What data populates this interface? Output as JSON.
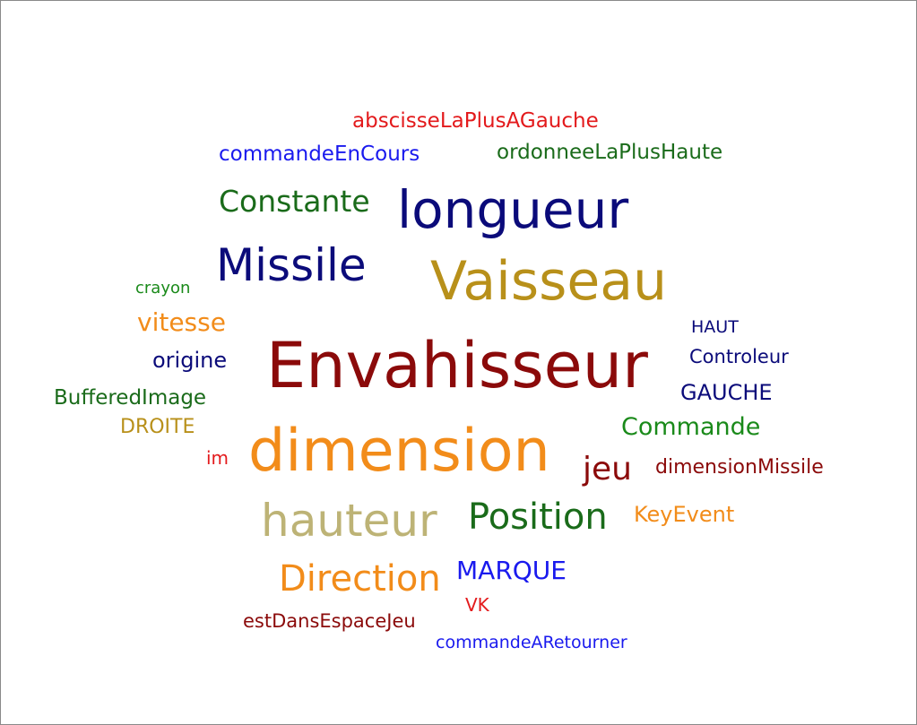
{
  "words": [
    {
      "id": "w-abscisse",
      "text": "abscisseLaPlusAGauche",
      "color": "#e31a1c"
    },
    {
      "id": "w-cmdcours",
      "text": "commandeEnCours",
      "color": "#1a1aee"
    },
    {
      "id": "w-ordonnee",
      "text": "ordonneeLaPlusHaute",
      "color": "#1a6b1a"
    },
    {
      "id": "w-constante",
      "text": "Constante",
      "color": "#1a6b1a"
    },
    {
      "id": "w-longueur",
      "text": "longueur",
      "color": "#0b0b7a"
    },
    {
      "id": "w-missile",
      "text": "Missile",
      "color": "#0b0b7a"
    },
    {
      "id": "w-vaisseau",
      "text": "Vaisseau",
      "color": "#b8901a"
    },
    {
      "id": "w-crayon",
      "text": "crayon",
      "color": "#1a8a1a"
    },
    {
      "id": "w-vitesse",
      "text": "vitesse",
      "color": "#f28c1a"
    },
    {
      "id": "w-haut",
      "text": "HAUT",
      "color": "#0b0b7a"
    },
    {
      "id": "w-envah",
      "text": "Envahisseur",
      "color": "#8b0a0a"
    },
    {
      "id": "w-origine",
      "text": "origine",
      "color": "#0b0b7a"
    },
    {
      "id": "w-controleur",
      "text": "Controleur",
      "color": "#0b0b7a"
    },
    {
      "id": "w-buffered",
      "text": "BufferedImage",
      "color": "#1a6b1a"
    },
    {
      "id": "w-gauche",
      "text": "GAUCHE",
      "color": "#0b0b7a"
    },
    {
      "id": "w-droite",
      "text": "DROITE",
      "color": "#b8901a"
    },
    {
      "id": "w-commande",
      "text": "Commande",
      "color": "#1a8a1a"
    },
    {
      "id": "w-dimension",
      "text": "dimension",
      "color": "#f28c1a"
    },
    {
      "id": "w-im",
      "text": "im",
      "color": "#e31a1c"
    },
    {
      "id": "w-jeu",
      "text": "jeu",
      "color": "#8b0a0a"
    },
    {
      "id": "w-dimmissile",
      "text": "dimensionMissile",
      "color": "#8b0a0a"
    },
    {
      "id": "w-hauteur",
      "text": "hauteur",
      "color": "#bdb376"
    },
    {
      "id": "w-position",
      "text": "Position",
      "color": "#1a6b1a"
    },
    {
      "id": "w-keyevent",
      "text": "KeyEvent",
      "color": "#f28c1a"
    },
    {
      "id": "w-marque",
      "text": "MARQUE",
      "color": "#1a1aee"
    },
    {
      "id": "w-direction",
      "text": "Direction",
      "color": "#f28c1a"
    },
    {
      "id": "w-vk",
      "text": "VK",
      "color": "#e31a1c"
    },
    {
      "id": "w-estdans",
      "text": "estDansEspaceJeu",
      "color": "#8b0a0a"
    },
    {
      "id": "w-cmdret",
      "text": "commandeARetourner",
      "color": "#1a1aee"
    }
  ]
}
